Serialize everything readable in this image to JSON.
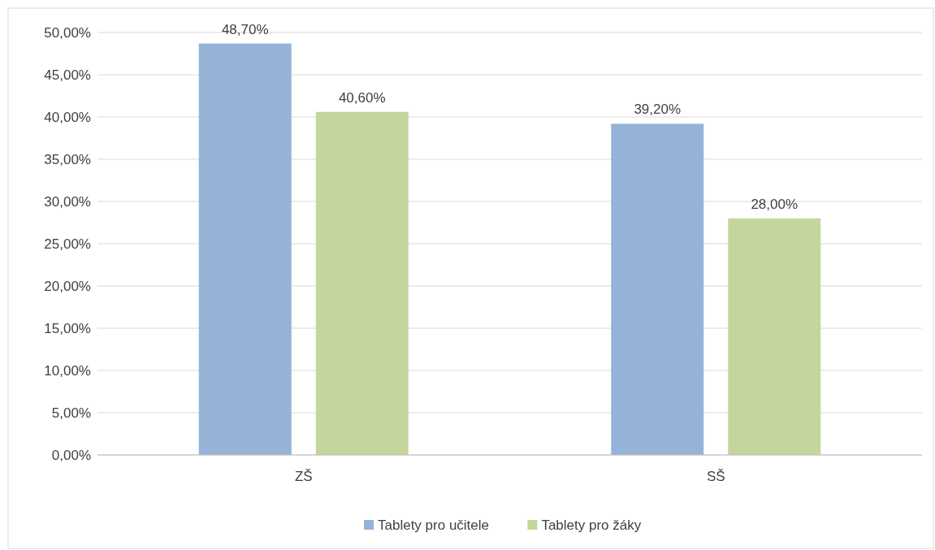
{
  "chart_data": {
    "type": "bar",
    "categories": [
      "ZŠ",
      "SŠ"
    ],
    "series": [
      {
        "name": "Tablety pro učitele",
        "color": "#95b3d7",
        "values": [
          48.7,
          39.2
        ],
        "value_labels": [
          "48,70%",
          "39,20%"
        ]
      },
      {
        "name": "Tablety pro žáky",
        "color": "#c3d69b",
        "values": [
          40.6,
          28.0
        ],
        "value_labels": [
          "40,60%",
          "28,00%"
        ]
      }
    ],
    "ylim": [
      0,
      50
    ],
    "yticks": [
      {
        "value": 0,
        "label": "0,00%"
      },
      {
        "value": 5,
        "label": "5,00%"
      },
      {
        "value": 10,
        "label": "10,00%"
      },
      {
        "value": 15,
        "label": "15,00%"
      },
      {
        "value": 20,
        "label": "20,00%"
      },
      {
        "value": 25,
        "label": "25,00%"
      },
      {
        "value": 30,
        "label": "30,00%"
      },
      {
        "value": 35,
        "label": "35,00%"
      },
      {
        "value": 40,
        "label": "40,00%"
      },
      {
        "value": 45,
        "label": "45,00%"
      },
      {
        "value": 50,
        "label": "50,00%"
      }
    ],
    "grid": "y",
    "legend": "bottom"
  }
}
